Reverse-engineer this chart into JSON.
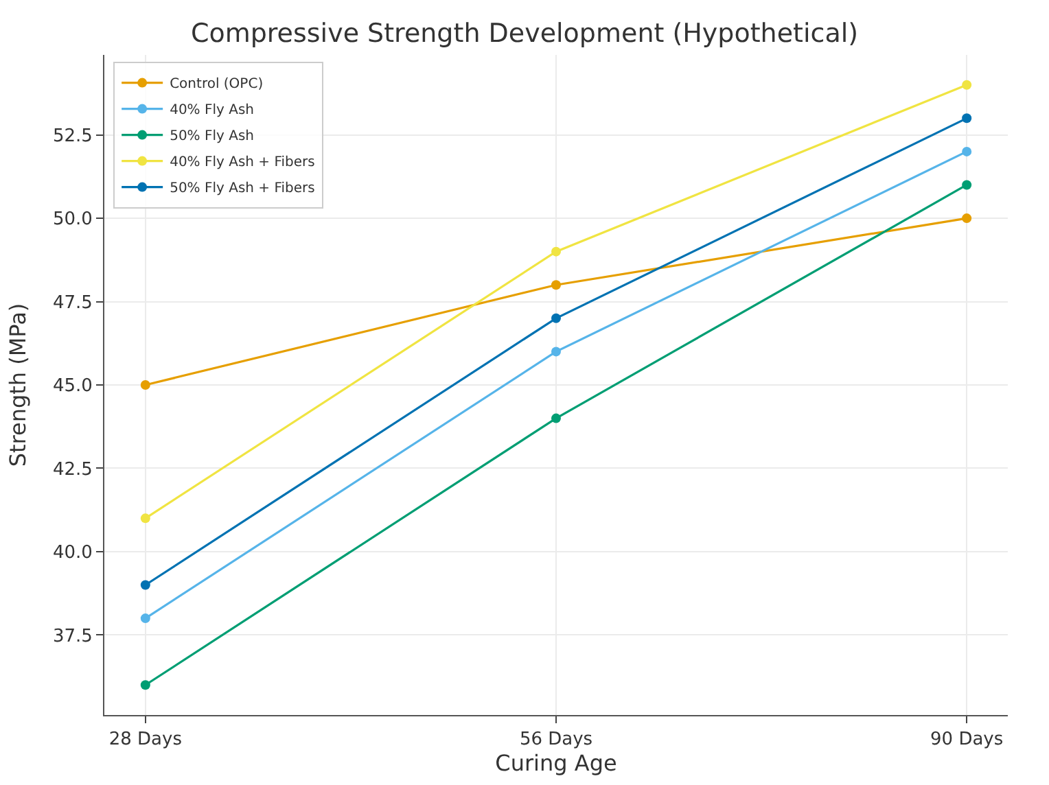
{
  "chart_data": {
    "type": "line",
    "title": "Compressive Strength Development (Hypothetical)",
    "xlabel": "Curing Age",
    "ylabel": "Strength (MPa)",
    "categories": [
      "28 Days",
      "56 Days",
      "90 Days"
    ],
    "series": [
      {
        "name": "Control (OPC)",
        "color": "#e69f00",
        "values": [
          45,
          48,
          50
        ]
      },
      {
        "name": "40% Fly Ash",
        "color": "#56b4e9",
        "values": [
          38,
          46,
          52
        ]
      },
      {
        "name": "50% Fly Ash",
        "color": "#009e73",
        "values": [
          36,
          44,
          51
        ]
      },
      {
        "name": "40% Fly Ash + Fibers",
        "color": "#f0e442",
        "values": [
          41,
          49,
          54
        ]
      },
      {
        "name": "50% Fly Ash + Fibers",
        "color": "#0072b2",
        "values": [
          39,
          47,
          53
        ]
      }
    ],
    "ylim": [
      35.1,
      54.9
    ],
    "yticks": [
      {
        "value": 37.5,
        "label": "37.5"
      },
      {
        "value": 40,
        "label": "40.0"
      },
      {
        "value": 42.5,
        "label": "42.5"
      },
      {
        "value": 45,
        "label": "45.0"
      },
      {
        "value": 47.5,
        "label": "47.5"
      },
      {
        "value": 50,
        "label": "50.0"
      },
      {
        "value": 52.5,
        "label": "52.5"
      }
    ],
    "grid": true,
    "legend": "top left",
    "marker": "circle",
    "line_style": "solid"
  }
}
